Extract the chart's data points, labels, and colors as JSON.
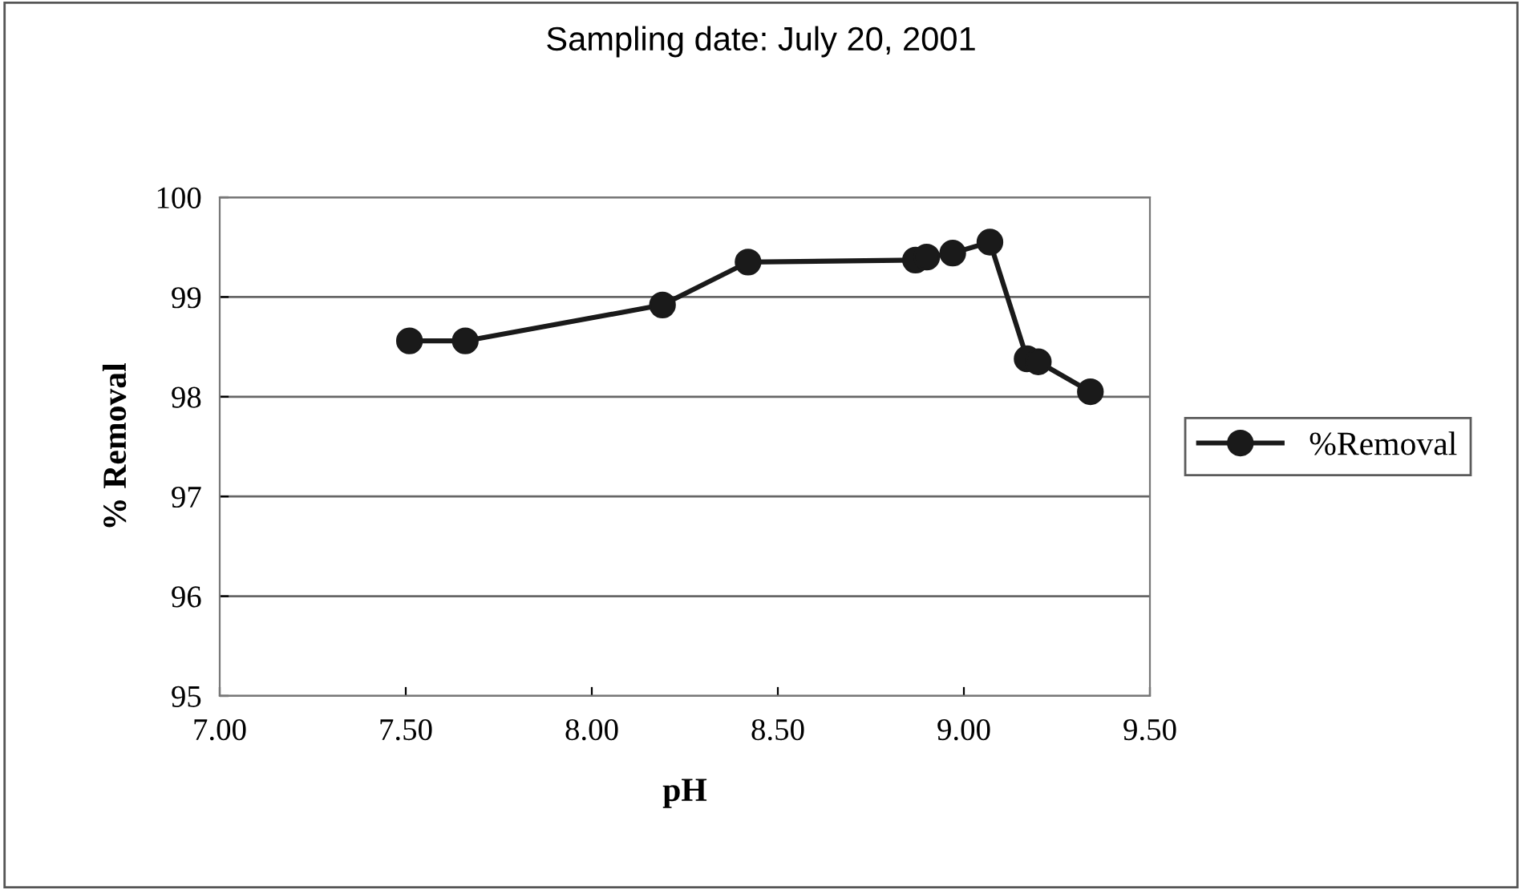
{
  "chart_data": {
    "type": "line",
    "title": "Sampling date: July 20, 2001",
    "xlabel": "pH",
    "ylabel": "% Removal",
    "x": [
      7.51,
      7.66,
      8.19,
      8.42,
      8.87,
      8.9,
      8.97,
      9.07,
      9.17,
      9.2,
      9.34
    ],
    "series": [
      {
        "name": "%Removal",
        "color": "#1a1a1a",
        "values": [
          98.56,
          98.56,
          98.92,
          99.35,
          99.37,
          99.4,
          99.44,
          99.55,
          98.38,
          98.35,
          98.05
        ]
      }
    ],
    "xlim": [
      7.0,
      9.5
    ],
    "xticks": [
      {
        "value": 7.0,
        "label": "7.00"
      },
      {
        "value": 7.5,
        "label": "7.50"
      },
      {
        "value": 8.0,
        "label": "8.00"
      },
      {
        "value": 8.5,
        "label": "8.50"
      },
      {
        "value": 9.0,
        "label": "9.00"
      },
      {
        "value": 9.5,
        "label": "9.50"
      }
    ],
    "ylim": [
      95,
      100
    ],
    "yticks": [
      95,
      96,
      97,
      98,
      99,
      100
    ],
    "grid": "y",
    "legend": "right",
    "marker": "circle",
    "line_style": "solid"
  }
}
